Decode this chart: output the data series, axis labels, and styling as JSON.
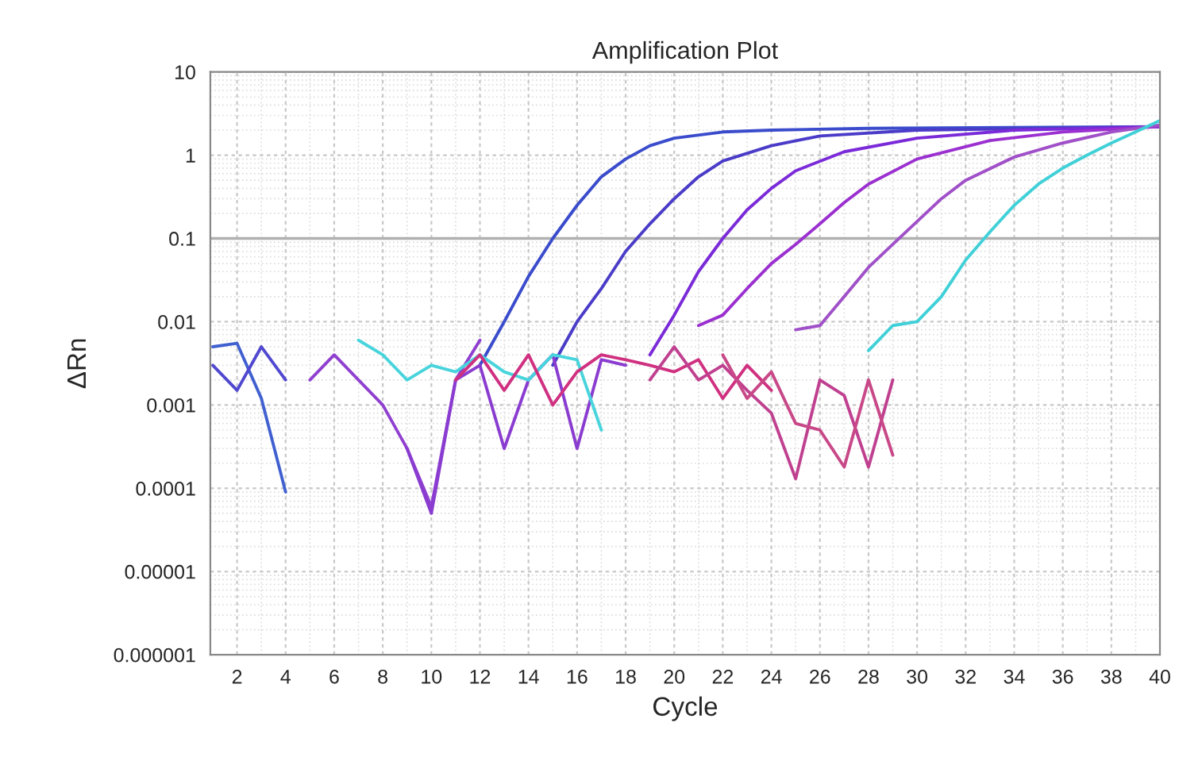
{
  "chart_data": {
    "type": "line",
    "title": "Amplification Plot",
    "xlabel": "Cycle",
    "ylabel": "ΔRn",
    "log": "y",
    "grid": true,
    "legend": false,
    "marker": "none",
    "line_style": "solid",
    "xlim": [
      0.9,
      40
    ],
    "xticks": [
      2,
      4,
      6,
      8,
      10,
      12,
      14,
      16,
      18,
      20,
      22,
      24,
      26,
      28,
      30,
      32,
      34,
      36,
      38,
      40
    ],
    "ylim": [
      1e-06,
      10
    ],
    "yticks": [
      {
        "value": 1e-06,
        "label": "0.000001"
      },
      {
        "value": 1e-05,
        "label": "0.00001"
      },
      0.0001,
      0.001,
      0.01,
      0.1,
      1,
      10
    ],
    "ref_lines": [
      {
        "axis": "y",
        "value": 0.1,
        "color": "#b0b0b0",
        "line_style": "solid"
      }
    ],
    "series": [
      {
        "color": "#3a4ccc",
        "x": [
          12,
          13,
          14,
          15,
          16,
          17,
          18,
          19,
          20,
          22,
          24,
          28,
          40
        ],
        "values": [
          0.003,
          0.01,
          0.035,
          0.1,
          0.25,
          0.55,
          0.9,
          1.3,
          1.6,
          1.9,
          2.0,
          2.1,
          2.2
        ]
      },
      {
        "color": "#4a3cc8",
        "x": [
          15,
          16,
          17,
          18,
          19,
          20,
          21,
          22,
          24,
          26,
          30,
          40
        ],
        "values": [
          0.003,
          0.01,
          0.025,
          0.07,
          0.15,
          0.3,
          0.55,
          0.85,
          1.3,
          1.7,
          2.0,
          2.2
        ]
      },
      {
        "color": "#7a2ad8",
        "x": [
          19,
          20,
          21,
          22,
          23,
          24,
          25,
          27,
          30,
          34,
          40
        ],
        "values": [
          0.004,
          0.012,
          0.04,
          0.1,
          0.22,
          0.4,
          0.65,
          1.1,
          1.6,
          2.0,
          2.2
        ]
      },
      {
        "color": "#9b30d0",
        "x": [
          21,
          22,
          23,
          24,
          25,
          26,
          27,
          28,
          30,
          33,
          36,
          40
        ],
        "values": [
          0.009,
          0.012,
          0.025,
          0.05,
          0.085,
          0.15,
          0.27,
          0.45,
          0.9,
          1.5,
          1.9,
          2.2
        ]
      },
      {
        "color": "#a050c8",
        "x": [
          25,
          26,
          27,
          28,
          29,
          30,
          31,
          32,
          34,
          36,
          38,
          40
        ],
        "values": [
          0.008,
          0.009,
          0.02,
          0.045,
          0.085,
          0.16,
          0.3,
          0.5,
          0.95,
          1.4,
          1.9,
          2.3
        ]
      },
      {
        "color": "#40d0d8",
        "x": [
          28,
          29,
          30,
          31,
          32,
          33,
          34,
          35,
          36,
          37,
          38,
          39,
          40
        ],
        "values": [
          0.0045,
          0.009,
          0.01,
          0.02,
          0.055,
          0.12,
          0.25,
          0.45,
          0.7,
          1.0,
          1.4,
          1.9,
          2.6
        ]
      },
      {
        "color": "#4060d0",
        "x": [
          1,
          2,
          3,
          4
        ],
        "values": [
          0.005,
          0.0055,
          0.0012,
          9e-05
        ]
      },
      {
        "color": "#5048d0",
        "x": [
          1,
          2,
          3,
          4
        ],
        "values": [
          0.003,
          0.0015,
          0.005,
          0.002
        ]
      },
      {
        "color": "#9040d0",
        "x": [
          5,
          6,
          7,
          8,
          9,
          10,
          11,
          12
        ],
        "values": [
          0.002,
          0.004,
          0.002,
          0.001,
          0.0003,
          6e-05,
          0.002,
          0.006
        ]
      },
      {
        "color": "#8a3cd0",
        "x": [
          9,
          10,
          11,
          12,
          13,
          14,
          15,
          16,
          17,
          18
        ],
        "values": [
          0.0003,
          5e-05,
          0.002,
          0.003,
          0.0003,
          0.002,
          0.004,
          0.0003,
          0.0035,
          0.003
        ]
      },
      {
        "color": "#48d4dc",
        "x": [
          7,
          8,
          9,
          10,
          11,
          12,
          13,
          14,
          15,
          16,
          17
        ],
        "values": [
          0.006,
          0.004,
          0.002,
          0.003,
          0.0025,
          0.004,
          0.0025,
          0.002,
          0.004,
          0.0035,
          0.0005
        ]
      },
      {
        "color": "#d03080",
        "x": [
          11,
          12,
          13,
          14,
          15,
          16,
          17,
          18,
          19,
          20,
          21,
          22,
          23,
          24
        ],
        "values": [
          0.002,
          0.004,
          0.0015,
          0.004,
          0.001,
          0.0025,
          0.004,
          0.0035,
          0.003,
          0.0025,
          0.0035,
          0.0012,
          0.003,
          0.0015
        ]
      },
      {
        "color": "#c04090",
        "x": [
          19,
          20,
          21,
          22,
          23,
          24,
          25,
          26,
          27,
          28,
          29
        ],
        "values": [
          0.002,
          0.005,
          0.002,
          0.003,
          0.0015,
          0.0008,
          0.00013,
          0.002,
          0.0013,
          0.00018,
          0.002
        ]
      },
      {
        "color": "#c84888",
        "x": [
          22,
          23,
          24,
          25,
          26,
          27,
          28,
          29
        ],
        "values": [
          0.004,
          0.0012,
          0.0025,
          0.0006,
          0.0005,
          0.00018,
          0.002,
          0.00025
        ]
      }
    ]
  }
}
